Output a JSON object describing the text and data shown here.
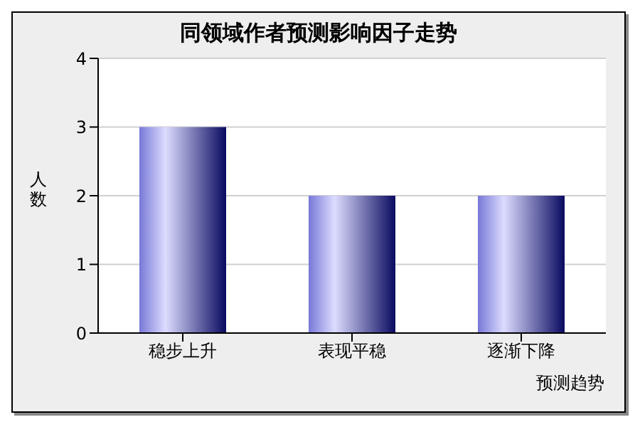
{
  "chart_data": {
    "type": "bar",
    "title": "同领域作者预测影响因子走势",
    "xlabel": "预测趋势",
    "ylabel": "人数",
    "categories": [
      "稳步上升",
      "表现平稳",
      "逐渐下降"
    ],
    "values": [
      3,
      2,
      2
    ],
    "color": "#7878d8",
    "ylim": [
      0,
      4
    ],
    "yticks": [
      0,
      1,
      2,
      3,
      4
    ],
    "grid": "y"
  }
}
